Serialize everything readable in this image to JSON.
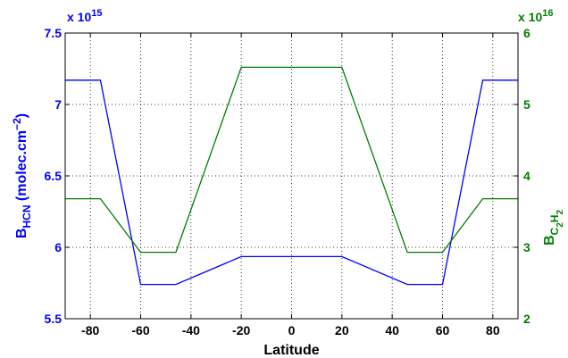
{
  "colors": {
    "hcn": "#0000ff",
    "c2h2": "#007f00",
    "axis": "#000000",
    "grid": "#000000"
  },
  "chart_data": {
    "type": "line",
    "title": "",
    "xlabel": "Latitude",
    "xlim": [
      -90,
      90
    ],
    "xticks": [
      -80,
      -60,
      -40,
      -20,
      0,
      20,
      40,
      60,
      80
    ],
    "grid": true,
    "ylabel_left": {
      "prefix": "B",
      "sub": "HCN",
      "unit": " (molec.cm",
      "sup": "−2",
      "suffix": ")"
    },
    "ylabel_right": {
      "prefix": "B",
      "parts": [
        [
          "C",
          ""
        ],
        [
          "2",
          "sub2"
        ],
        [
          "H",
          "sub"
        ],
        [
          "2",
          "sub2"
        ]
      ]
    },
    "ylim_left": [
      5.5,
      7.5
    ],
    "yticks_left": [
      5.5,
      6,
      6.5,
      7,
      7.5
    ],
    "yticklabels_left": [
      "5.5",
      "6",
      "6.5",
      "7",
      "7.5"
    ],
    "exponent_left": {
      "base": "x 10",
      "power": "15"
    },
    "ylim_right": [
      2,
      6
    ],
    "yticks_right": [
      2,
      3,
      4,
      5,
      6
    ],
    "yticklabels_right": [
      "2",
      "3",
      "4",
      "5",
      "6"
    ],
    "exponent_right": {
      "base": "x 10",
      "power": "16"
    },
    "series": [
      {
        "axis": "left",
        "x": [
          -90,
          -76,
          -60,
          -46,
          -20,
          20,
          46,
          60,
          76,
          90
        ],
        "y": [
          7.17,
          7.17,
          5.74,
          5.74,
          5.935,
          5.935,
          5.74,
          5.74,
          7.17,
          7.17
        ]
      },
      {
        "axis": "right",
        "x": [
          -90,
          -76,
          -60,
          -46,
          -20,
          20,
          46,
          60,
          76,
          90
        ],
        "y": [
          3.68,
          3.68,
          2.93,
          2.93,
          5.52,
          5.52,
          2.93,
          2.93,
          3.68,
          3.68
        ]
      }
    ]
  }
}
